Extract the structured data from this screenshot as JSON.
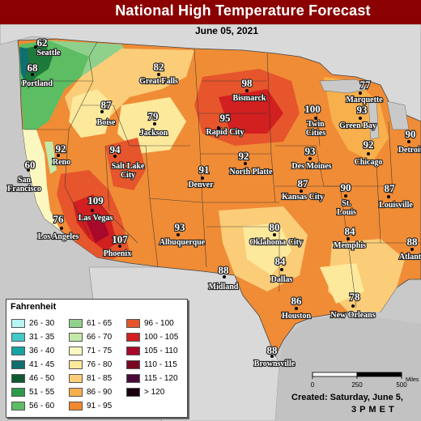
{
  "title": "National High Temperature Forecast",
  "date": "June 05, 2021",
  "legend": {
    "title": "Fahrenheit",
    "items": [
      {
        "label": "26 - 30",
        "color": "#b8f5f5"
      },
      {
        "label": "31 - 35",
        "color": "#45c8c8"
      },
      {
        "label": "36 - 40",
        "color": "#17a3a3"
      },
      {
        "label": "41 - 45",
        "color": "#0f6e6e"
      },
      {
        "label": "46 - 50",
        "color": "#0e5a2f"
      },
      {
        "label": "51 - 55",
        "color": "#2e9a48"
      },
      {
        "label": "56 - 60",
        "color": "#5cbd63"
      },
      {
        "label": "61 - 65",
        "color": "#8fd18c"
      },
      {
        "label": "66 - 70",
        "color": "#c4e8a8"
      },
      {
        "label": "71 - 75",
        "color": "#fbf7c0"
      },
      {
        "label": "76 - 80",
        "color": "#fde99c"
      },
      {
        "label": "81 - 85",
        "color": "#fbcd78"
      },
      {
        "label": "86 - 90",
        "color": "#f8b04c"
      },
      {
        "label": "91 - 95",
        "color": "#f2882e"
      },
      {
        "label": "96 - 100",
        "color": "#e6552c"
      },
      {
        "label": "100 - 105",
        "color": "#d21f1f"
      },
      {
        "label": "105 - 110",
        "color": "#a8082a"
      },
      {
        "label": "110 - 115",
        "color": "#7a0622"
      },
      {
        "label": "115 - 120",
        "color": "#4a0a3a"
      },
      {
        "label": "> 120",
        "color": "#1a0010"
      }
    ]
  },
  "scale": {
    "ticks": [
      "0",
      "250",
      "500"
    ],
    "unit": "Miles"
  },
  "created": "Created:  Saturday, June 5,",
  "created_time": "3 P M E T",
  "cities": [
    {
      "name": "Seattle",
      "value": "62"
    },
    {
      "name": "Portland",
      "value": "68"
    },
    {
      "name": "Great Falls",
      "value": "82"
    },
    {
      "name": "Boise",
      "value": "87"
    },
    {
      "name": "Bismarck",
      "value": "98"
    },
    {
      "name": "Marquette",
      "value": "77"
    },
    {
      "name": "Twin Cities",
      "value": "100"
    },
    {
      "name": "Green Bay",
      "value": "93"
    },
    {
      "name": "Rapid City",
      "value": "95"
    },
    {
      "name": "Jackson",
      "value": "79"
    },
    {
      "name": "Detroit",
      "value": "90"
    },
    {
      "name": "Reno",
      "value": "92"
    },
    {
      "name": "Salt Lake City",
      "value": "94"
    },
    {
      "name": "North Platte",
      "value": "92"
    },
    {
      "name": "Des Moines",
      "value": "93"
    },
    {
      "name": "Chicago",
      "value": "92"
    },
    {
      "name": "San Francisco",
      "value": "60"
    },
    {
      "name": "Denver",
      "value": "91"
    },
    {
      "name": "Kansas City",
      "value": "87"
    },
    {
      "name": "St. Louis",
      "value": "90"
    },
    {
      "name": "Louisville",
      "value": "87"
    },
    {
      "name": "Las Vegas",
      "value": "109"
    },
    {
      "name": "Los Angeles",
      "value": "76"
    },
    {
      "name": "Phoenix",
      "value": "107"
    },
    {
      "name": "Albuquerque",
      "value": "93"
    },
    {
      "name": "Oklahoma City",
      "value": "80"
    },
    {
      "name": "Memphis",
      "value": "84"
    },
    {
      "name": "Atlanta",
      "value": "88"
    },
    {
      "name": "Dallas",
      "value": "84"
    },
    {
      "name": "Midland",
      "value": "88"
    },
    {
      "name": "Houston",
      "value": "86"
    },
    {
      "name": "New Orleans",
      "value": "78"
    },
    {
      "name": "Brownsville",
      "value": "88"
    }
  ]
}
